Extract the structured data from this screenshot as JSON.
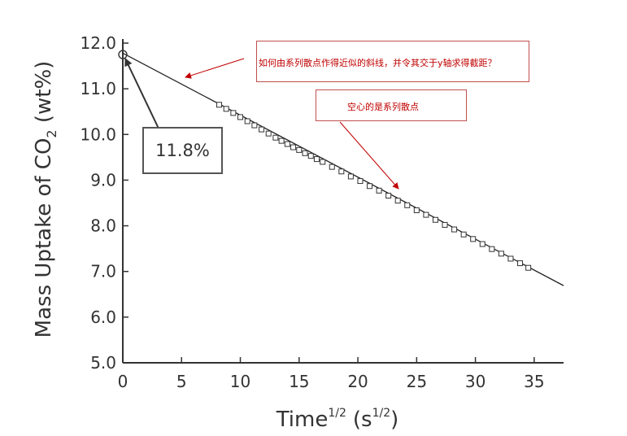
{
  "chart_data": {
    "type": "scatter",
    "xlabel": "Time",
    "xlabel_sup": "1/2",
    "xlabel_unit_open": "(s",
    "xlabel_unit_sup": "1/2",
    "xlabel_unit_close": ")",
    "ylabel_pre": "Mass Uptake of CO",
    "ylabel_sub": "2",
    "ylabel_post": " (wt%)",
    "xlim": [
      0,
      37.5
    ],
    "ylim": [
      5.0,
      12.0
    ],
    "x_ticks": [
      0,
      5,
      10,
      15,
      20,
      25,
      30,
      35
    ],
    "y_ticks": [
      5.0,
      6.0,
      7.0,
      8.0,
      9.0,
      10.0,
      11.0,
      12.0
    ],
    "grid": false,
    "series": [
      {
        "marker": "open-square",
        "x": [
          0,
          8.2,
          8.8,
          9.4,
          10.0,
          10.6,
          11.2,
          11.8,
          12.4,
          13.0,
          13.5,
          14.0,
          14.5,
          15.0,
          15.5,
          16.0,
          16.5,
          17.0,
          17.8,
          18.6,
          19.4,
          20.2,
          21.0,
          21.8,
          22.6,
          23.4,
          24.2,
          25.0,
          25.8,
          26.6,
          27.4,
          28.2,
          29.0,
          29.8,
          30.6,
          31.4,
          32.2,
          33.0,
          33.8,
          34.5
        ],
        "y": [
          11.75,
          10.65,
          10.56,
          10.47,
          10.38,
          10.29,
          10.2,
          10.11,
          10.02,
          9.93,
          9.86,
          9.79,
          9.72,
          9.66,
          9.59,
          9.53,
          9.46,
          9.4,
          9.29,
          9.19,
          9.08,
          8.98,
          8.87,
          8.77,
          8.66,
          8.55,
          8.45,
          8.34,
          8.24,
          8.13,
          8.02,
          7.92,
          7.81,
          7.71,
          7.6,
          7.49,
          7.39,
          7.28,
          7.18,
          7.08
        ]
      }
    ],
    "fit_line": {
      "x": [
        0,
        37.5
      ],
      "y": [
        11.78,
        6.69
      ]
    }
  },
  "annotations": {
    "callout_value": "11.8%",
    "note_1": "如何由系列散点作得近似的斜线，并令其交于y轴求得截距？",
    "note_2": "空心的是系列散点",
    "arrow_color": "#c00000"
  }
}
